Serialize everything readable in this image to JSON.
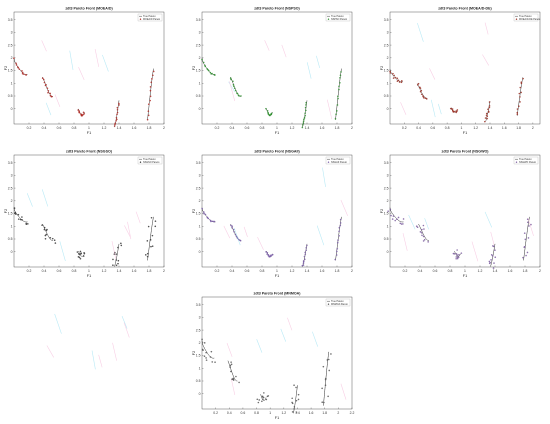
{
  "colors": {
    "true_front": "#111111",
    "watermark_cyan": "#7fd8ee",
    "watermark_pink": "#f2a8cf",
    "background": "#ffffff",
    "axis": "#333333"
  },
  "chart_data": [
    {
      "type": "scatter",
      "title": "zdt3 Pareto Front (MOEA/D)",
      "xlabel": "F1",
      "ylabel": "F2",
      "xlim": [
        0,
        2
      ],
      "ylim": [
        -0.6,
        3.8
      ],
      "xticks": [
        "0.2",
        "0.4",
        "0.6",
        "0.8",
        "1",
        "1.2",
        "1.4",
        "1.6",
        "1.8",
        "2"
      ],
      "yticks": [
        "0",
        "0.5",
        "1",
        "1.5",
        "2",
        "2.5",
        "3",
        "3.5"
      ],
      "legend": [
        "True Pareto",
        "MOEA/D Pareto"
      ],
      "marker_color": "#b02a25",
      "segments": [
        [
          0.0,
          0.09
        ],
        [
          0.19,
          0.26
        ],
        [
          0.43,
          0.47
        ],
        [
          0.67,
          0.7
        ],
        [
          0.89,
          0.93
        ]
      ],
      "scale": 2.0,
      "reach": 1.0,
      "jitter": 0.02
    },
    {
      "type": "scatter",
      "title": "zdt3 Pareto Front (NSPSO)",
      "xlabel": "F1",
      "ylabel": "F2",
      "xlim": [
        0,
        2
      ],
      "ylim": [
        -0.6,
        3.8
      ],
      "xticks": [
        "0.2",
        "0.4",
        "0.6",
        "0.8",
        "1",
        "1.2",
        "1.4",
        "1.6",
        "1.8",
        "2"
      ],
      "yticks": [
        "0",
        "0.5",
        "1",
        "1.5",
        "2",
        "2.5",
        "3",
        "3.5"
      ],
      "legend": [
        "True Pareto",
        "NSPSO Pareto"
      ],
      "marker_color": "#2f8f2f",
      "segments": [
        [
          0.0,
          0.09
        ],
        [
          0.19,
          0.26
        ],
        [
          0.43,
          0.47
        ],
        [
          0.67,
          0.7
        ],
        [
          0.89,
          0.93
        ]
      ],
      "scale": 2.0,
      "reach": 1.0,
      "jitter": 0.015
    },
    {
      "type": "scatter",
      "title": "zdt3 Pareto Front (MOEA/D-DE)",
      "xlabel": "F1",
      "ylabel": "F2",
      "xlim": [
        0,
        2.1
      ],
      "ylim": [
        -0.6,
        3.8
      ],
      "xticks": [
        "0.2",
        "0.4",
        "0.6",
        "0.8",
        "1",
        "1.2",
        "1.4",
        "1.6",
        "1.8",
        "2"
      ],
      "yticks": [
        "0",
        "0.5",
        "1",
        "1.5",
        "2",
        "2.5",
        "3",
        "3.5"
      ],
      "legend": [
        "True Pareto",
        "MOEA/D-DE Pareto"
      ],
      "marker_color": "#9a2e22",
      "segments": [
        [
          0.0,
          0.09
        ],
        [
          0.19,
          0.26
        ],
        [
          0.43,
          0.47
        ],
        [
          0.67,
          0.7
        ],
        [
          0.89,
          0.93
        ]
      ],
      "scale": 2.0,
      "reach": 0.75,
      "jitter": 0.03
    },
    {
      "type": "scatter",
      "title": "zdt3 Pareto Front (NSGSO)",
      "xlabel": "F1",
      "ylabel": "F2",
      "xlim": [
        0,
        2
      ],
      "ylim": [
        -0.6,
        3.8
      ],
      "xticks": [
        "0.2",
        "0.4",
        "0.6",
        "0.8",
        "1",
        "1.2",
        "1.4",
        "1.6",
        "1.8",
        "2"
      ],
      "yticks": [
        "0",
        "0.5",
        "1",
        "1.5",
        "2",
        "2.5",
        "3",
        "3.5"
      ],
      "legend": [
        "True Pareto",
        "NSGSO Pareto"
      ],
      "marker_color": "#333333",
      "segments": [
        [
          0.0,
          0.09
        ],
        [
          0.19,
          0.26
        ],
        [
          0.43,
          0.47
        ],
        [
          0.67,
          0.7
        ],
        [
          0.89,
          0.93
        ]
      ],
      "scale": 2.0,
      "reach": 0.85,
      "jitter": 0.09
    },
    {
      "type": "scatter",
      "title": "zdt3 Pareto Front (NSGAII)",
      "xlabel": "F1",
      "ylabel": "F2",
      "xlim": [
        0,
        2
      ],
      "ylim": [
        -0.6,
        3.8
      ],
      "xticks": [
        "0.2",
        "0.4",
        "0.6",
        "0.8",
        "1",
        "1.2",
        "1.4",
        "1.6",
        "1.8",
        "2"
      ],
      "yticks": [
        "0",
        "0.5",
        "1",
        "1.5",
        "2",
        "2.5",
        "3",
        "3.5"
      ],
      "legend": [
        "True Pareto",
        "NSGAII Pareto"
      ],
      "marker_color": "#7b5fa8",
      "segments": [
        [
          0.0,
          0.09
        ],
        [
          0.19,
          0.26
        ],
        [
          0.43,
          0.47
        ],
        [
          0.67,
          0.7
        ],
        [
          0.89,
          0.93
        ]
      ],
      "scale": 2.0,
      "reach": 0.85,
      "jitter": 0.015
    },
    {
      "type": "scatter",
      "title": "zdt3 Pareto Front (NSGWO)",
      "xlabel": "F1",
      "ylabel": "F2",
      "xlim": [
        0,
        2
      ],
      "ylim": [
        -0.6,
        3.8
      ],
      "xticks": [
        "0.2",
        "0.4",
        "0.6",
        "0.8",
        "1",
        "1.2",
        "1.4",
        "1.6",
        "1.8",
        "2"
      ],
      "yticks": [
        "0",
        "0.5",
        "1",
        "1.5",
        "2",
        "2.5",
        "3",
        "3.5"
      ],
      "legend": [
        "True Pareto",
        "NSGWO Pareto"
      ],
      "marker_color": "#7a5c9e",
      "segments": [
        [
          0.0,
          0.09
        ],
        [
          0.19,
          0.26
        ],
        [
          0.43,
          0.47
        ],
        [
          0.67,
          0.7
        ],
        [
          0.89,
          0.93
        ]
      ],
      "scale": 2.0,
      "reach": 0.85,
      "jitter": 0.08
    },
    {
      "type": "scatter",
      "title": "zdt3 Pareto Front (MNMOA)",
      "xlabel": "F1",
      "ylabel": "F2",
      "xlim": [
        0,
        2.2
      ],
      "ylim": [
        -0.6,
        3.8
      ],
      "xticks": [
        "0.2",
        "0.4",
        "0.6",
        "0.8",
        "1",
        "1.2",
        "1.4",
        "1.6",
        "1.8",
        "2",
        "2.2"
      ],
      "yticks": [
        "0",
        "0.5",
        "1",
        "1.5",
        "2",
        "2.5",
        "3",
        "3.5"
      ],
      "legend": [
        "True Pareto",
        "MNMOA Pareto"
      ],
      "marker_color": "#555555",
      "segments": [
        [
          0.0,
          0.09
        ],
        [
          0.19,
          0.26
        ],
        [
          0.43,
          0.47
        ],
        [
          0.67,
          0.7
        ],
        [
          0.89,
          0.93
        ]
      ],
      "scale": 2.0,
      "reach": 1.05,
      "jitter": 0.12
    }
  ]
}
